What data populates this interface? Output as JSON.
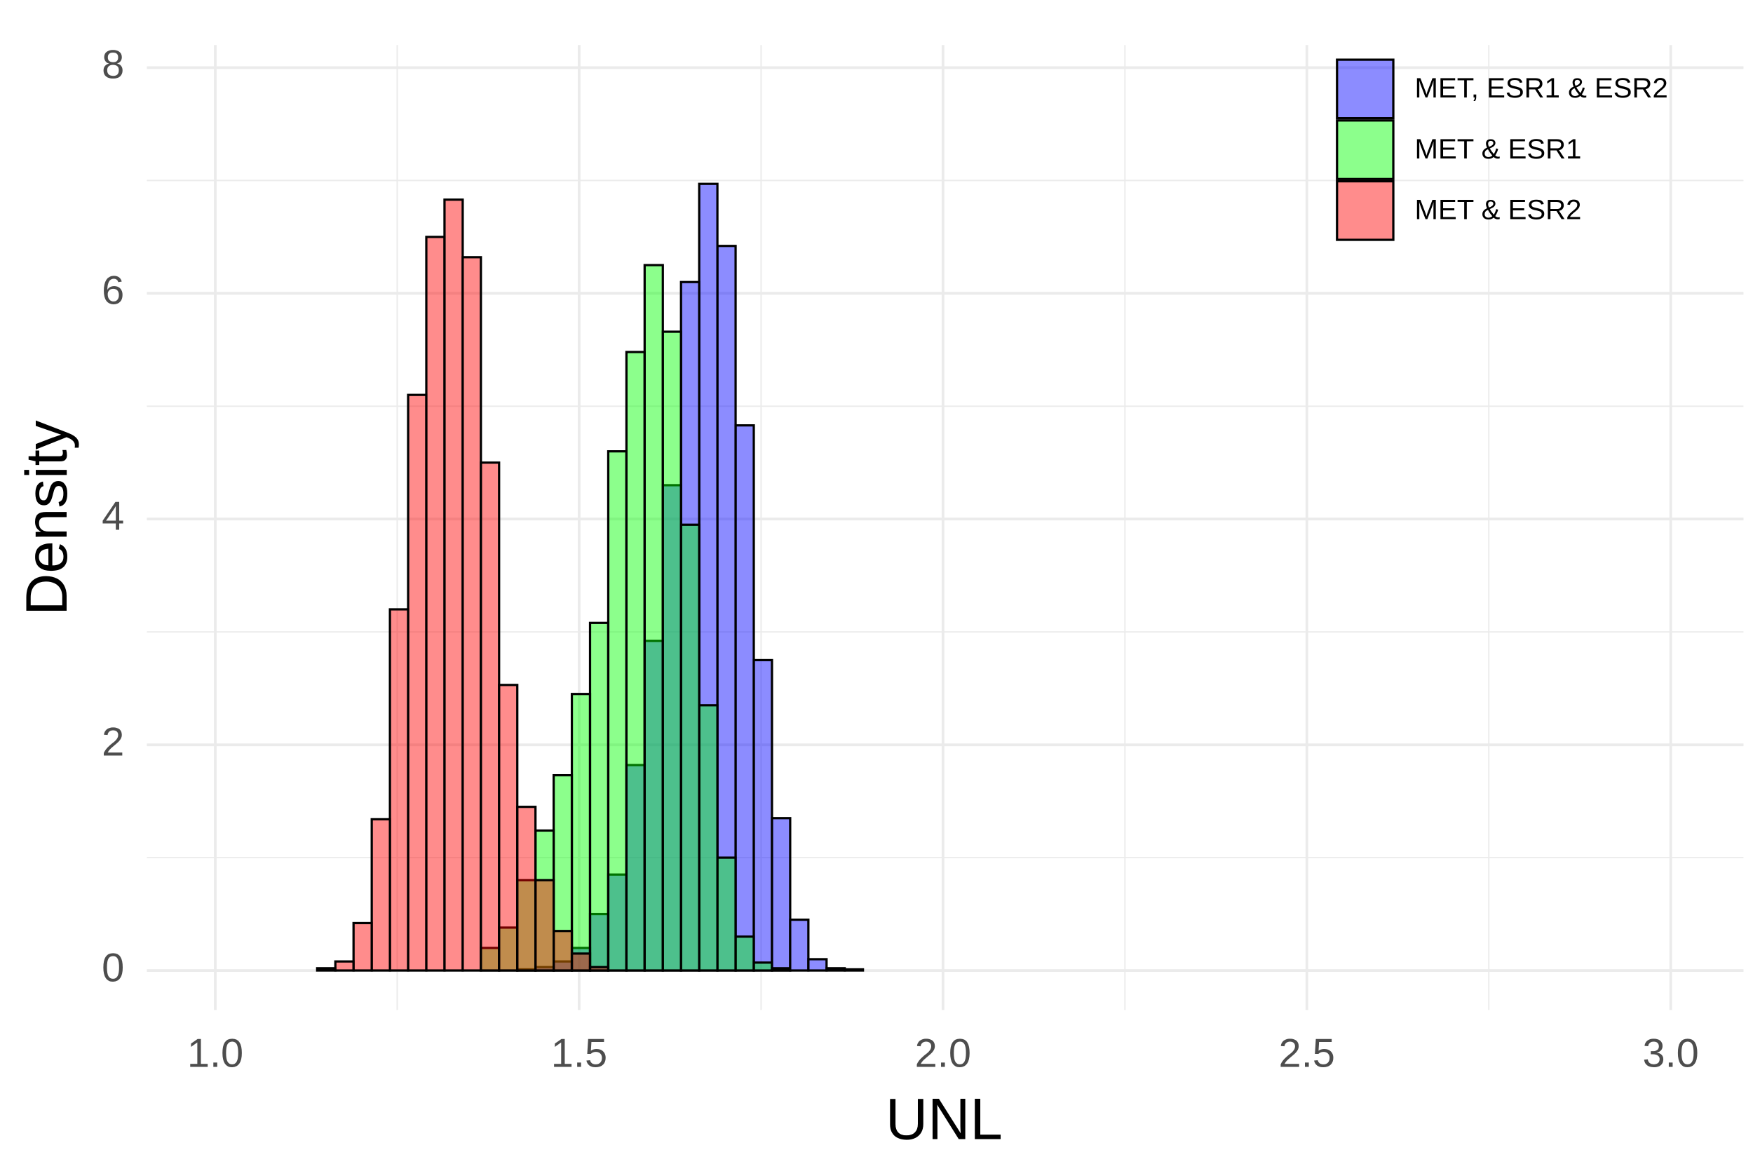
{
  "chart_data": {
    "type": "histogram",
    "x_label": "UNL",
    "y_label": "Density",
    "bins": [
      1.14,
      1.165,
      1.19,
      1.215,
      1.24,
      1.265,
      1.29,
      1.315,
      1.34,
      1.365,
      1.39,
      1.415,
      1.44,
      1.465,
      1.49,
      1.515,
      1.54,
      1.565,
      1.59,
      1.615,
      1.64,
      1.665,
      1.69,
      1.715,
      1.74,
      1.765,
      1.79,
      1.815,
      1.84,
      1.865,
      1.89
    ],
    "series": [
      {
        "name": "MET, ESR1 & ESR2",
        "color": "#0000ff",
        "values": [
          0,
          0,
          0,
          0,
          0,
          0,
          0,
          0,
          0,
          0,
          0,
          0.01,
          0.03,
          0.08,
          0.2,
          0.5,
          0.85,
          1.82,
          2.92,
          4.3,
          6.1,
          6.97,
          6.42,
          4.83,
          2.75,
          1.35,
          0.45,
          0.1,
          0.02,
          0.01
        ]
      },
      {
        "name": "MET & ESR1",
        "color": "#00ff00",
        "values": [
          0,
          0,
          0,
          0,
          0,
          0,
          0,
          0,
          0,
          0.2,
          0.38,
          0.8,
          1.24,
          1.73,
          2.45,
          3.08,
          4.6,
          5.48,
          6.25,
          5.66,
          3.95,
          2.35,
          1.0,
          0.3,
          0.07,
          0.02,
          0,
          0,
          0,
          0
        ]
      },
      {
        "name": "MET & ESR2",
        "color": "#ff0000",
        "values": [
          0.02,
          0.08,
          0.42,
          1.34,
          3.2,
          5.1,
          6.5,
          6.83,
          6.32,
          4.5,
          2.53,
          1.45,
          0.8,
          0.35,
          0.15,
          0.03,
          0,
          0,
          0,
          0,
          0,
          0,
          0,
          0,
          0,
          0,
          0,
          0,
          0,
          0
        ]
      }
    ],
    "fill_opacity": 0.45,
    "xlim": [
      0.906,
      3.1
    ],
    "xticks": [
      {
        "value": 1,
        "label": "1.0"
      },
      1.5,
      {
        "value": 2,
        "label": "2.0"
      },
      2.5,
      {
        "value": 3,
        "label": "3.0"
      }
    ],
    "ylim": [
      -0.35,
      8.2
    ],
    "yticks": [
      0,
      2,
      4,
      6,
      8
    ],
    "grid": true,
    "minor_grid": true,
    "legend_position": "top-right"
  }
}
